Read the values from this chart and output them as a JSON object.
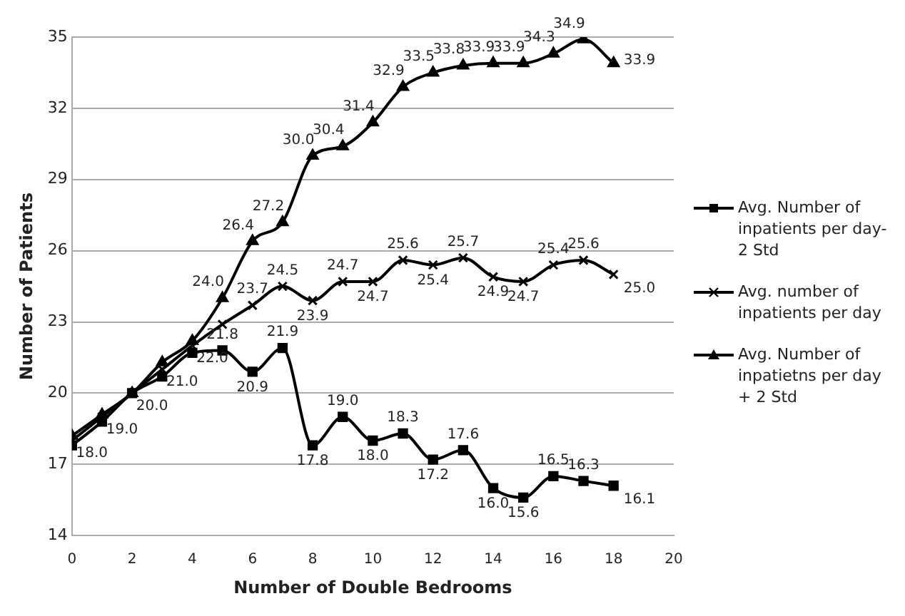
{
  "chart_data": {
    "type": "line",
    "xlabel": "Number of Double Bedrooms",
    "ylabel": "Number of Patients",
    "x": [
      0,
      1,
      2,
      3,
      4,
      5,
      6,
      7,
      8,
      9,
      10,
      11,
      12,
      13,
      14,
      15,
      16,
      17,
      18
    ],
    "xlim": [
      0,
      20
    ],
    "xticks": [
      0,
      2,
      4,
      6,
      8,
      10,
      12,
      14,
      16,
      18,
      20
    ],
    "ylim": [
      14,
      35
    ],
    "yticks": [
      14,
      17,
      20,
      23,
      26,
      29,
      32,
      35
    ],
    "grid": "y",
    "legend": "right",
    "series": [
      {
        "name": "Avg. Number of inpatients per day- 2 Std",
        "color": "#000000",
        "marker": "square",
        "values": [
          17.8,
          18.8,
          20.0,
          20.7,
          21.7,
          21.8,
          20.9,
          21.9,
          17.8,
          19.0,
          18.0,
          18.3,
          17.2,
          17.6,
          16.0,
          15.6,
          16.5,
          16.3,
          16.1
        ],
        "value_labels": [
          null,
          null,
          null,
          null,
          null,
          "21.8",
          "20.9",
          "21.9",
          "17.8",
          "19.0",
          "18.0",
          "18.3",
          "17.2",
          "17.6",
          "16.0",
          "15.6",
          "16.5",
          "16.3",
          "16.1"
        ]
      },
      {
        "name": "Avg. number of inpatients per day",
        "color": "#000000",
        "marker": "cross",
        "values": [
          18.0,
          19.0,
          20.0,
          21.0,
          22.0,
          22.9,
          23.7,
          24.5,
          23.9,
          24.7,
          24.7,
          25.6,
          25.4,
          25.7,
          24.9,
          24.7,
          25.4,
          25.6,
          25.0
        ],
        "value_labels": [
          "18.0",
          "19.0",
          "20.0",
          "21.0",
          "22.0",
          null,
          "23.7",
          "24.5",
          "23.9",
          "24.7",
          "24.7",
          "25.6",
          "25.4",
          "25.7",
          "24.9",
          "24.7",
          "25.4",
          "25.6",
          "25.0"
        ]
      },
      {
        "name": "Avg. Number of inpatietns per day + 2 Std",
        "color": "#000000",
        "marker": "triangle",
        "values": [
          18.2,
          19.1,
          20.0,
          21.3,
          22.2,
          24.0,
          26.4,
          27.2,
          30.0,
          30.4,
          31.4,
          32.9,
          33.5,
          33.8,
          33.9,
          33.9,
          34.3,
          34.9,
          33.9
        ],
        "value_labels": [
          null,
          null,
          null,
          null,
          null,
          "24.0",
          "26.4",
          "27.2",
          "30.0",
          "30.4",
          "31.4",
          "32.9",
          "33.5",
          "33.8",
          "33.9",
          "33.9",
          "34.3",
          "34.9",
          "33.9"
        ]
      }
    ]
  }
}
